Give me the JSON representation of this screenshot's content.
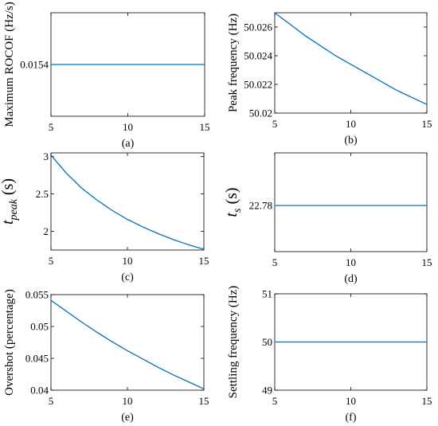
{
  "figure": {
    "line_color": "#0072BD"
  },
  "chart_data": [
    {
      "type": "line",
      "caption": "(a)",
      "ylabel": "Maximum ROCOF (Hz/s)",
      "xlim": [
        5,
        15
      ],
      "ylim": [
        0.015,
        0.0158
      ],
      "xticks": [
        5,
        10,
        15
      ],
      "yticks": [
        0.0154
      ],
      "ytick_labels": [
        "0.0154"
      ],
      "x": [
        5,
        6,
        7,
        8,
        9,
        10,
        11,
        12,
        13,
        14,
        15
      ],
      "y": [
        0.0154,
        0.0154,
        0.0154,
        0.0154,
        0.0154,
        0.0154,
        0.0154,
        0.0154,
        0.0154,
        0.0154,
        0.0154
      ]
    },
    {
      "type": "line",
      "caption": "(b)",
      "ylabel": "Peak frequency (Hz)",
      "xlim": [
        5,
        15
      ],
      "ylim": [
        50.02,
        50.027
      ],
      "xticks": [
        5,
        10,
        15
      ],
      "yticks": [
        50.02,
        50.022,
        50.024,
        50.026
      ],
      "ytick_labels": [
        "50.02",
        "50.022",
        "50.024",
        "50.026"
      ],
      "x": [
        5,
        6,
        7,
        8,
        9,
        10,
        11,
        12,
        13,
        14,
        15
      ],
      "y": [
        50.027,
        50.0262,
        50.0254,
        50.0247,
        50.024,
        50.0234,
        50.0228,
        50.0222,
        50.0216,
        50.0211,
        50.0206
      ]
    },
    {
      "type": "line",
      "caption": "(c)",
      "ylabel": "t",
      "ylabel_sub": "peak",
      "ylabel_unit": " (s)",
      "xlim": [
        5,
        15
      ],
      "ylim": [
        1.75,
        3.05
      ],
      "xticks": [
        5,
        10,
        15
      ],
      "yticks": [
        2,
        2.5,
        3
      ],
      "ytick_labels": [
        "2",
        "2.5",
        "3"
      ],
      "x": [
        5,
        6,
        7,
        8,
        9,
        10,
        11,
        12,
        13,
        14,
        15
      ],
      "y": [
        3.02,
        2.78,
        2.58,
        2.42,
        2.28,
        2.16,
        2.06,
        1.97,
        1.89,
        1.82,
        1.76
      ]
    },
    {
      "type": "line",
      "caption": "(d)",
      "ylabel": "t",
      "ylabel_sub": "s",
      "ylabel_unit": " (s)",
      "xlim": [
        5,
        15
      ],
      "ylim": [
        22.5,
        23.1
      ],
      "xticks": [
        5,
        10,
        15
      ],
      "yticks": [
        22.78
      ],
      "ytick_labels": [
        "22.78"
      ],
      "x": [
        5,
        6,
        7,
        8,
        9,
        10,
        11,
        12,
        13,
        14,
        15
      ],
      "y": [
        22.78,
        22.78,
        22.78,
        22.78,
        22.78,
        22.78,
        22.78,
        22.78,
        22.78,
        22.78,
        22.78
      ]
    },
    {
      "type": "line",
      "caption": "(e)",
      "ylabel": "Overshot (percentage)",
      "xlim": [
        5,
        15
      ],
      "ylim": [
        0.04,
        0.055
      ],
      "xticks": [
        5,
        10,
        15
      ],
      "yticks": [
        0.04,
        0.045,
        0.05,
        0.055
      ],
      "ytick_labels": [
        "0.04",
        "0.045",
        "0.05",
        "0.055"
      ],
      "x": [
        5,
        6,
        7,
        8,
        9,
        10,
        11,
        12,
        13,
        14,
        15
      ],
      "y": [
        0.0541,
        0.0524,
        0.0507,
        0.0491,
        0.0476,
        0.0462,
        0.0449,
        0.0436,
        0.0424,
        0.0413,
        0.0402
      ]
    },
    {
      "type": "line",
      "caption": "(f)",
      "ylabel": "Settling frequency (Hz)",
      "xlim": [
        5,
        15
      ],
      "ylim": [
        49,
        51
      ],
      "xticks": [
        5,
        10,
        15
      ],
      "yticks": [
        49,
        50,
        51
      ],
      "ytick_labels": [
        "49",
        "50",
        "51"
      ],
      "x": [
        5,
        6,
        7,
        8,
        9,
        10,
        11,
        12,
        13,
        14,
        15
      ],
      "y": [
        50,
        50,
        50,
        50,
        50,
        50,
        50,
        50,
        50,
        50,
        50
      ]
    }
  ]
}
